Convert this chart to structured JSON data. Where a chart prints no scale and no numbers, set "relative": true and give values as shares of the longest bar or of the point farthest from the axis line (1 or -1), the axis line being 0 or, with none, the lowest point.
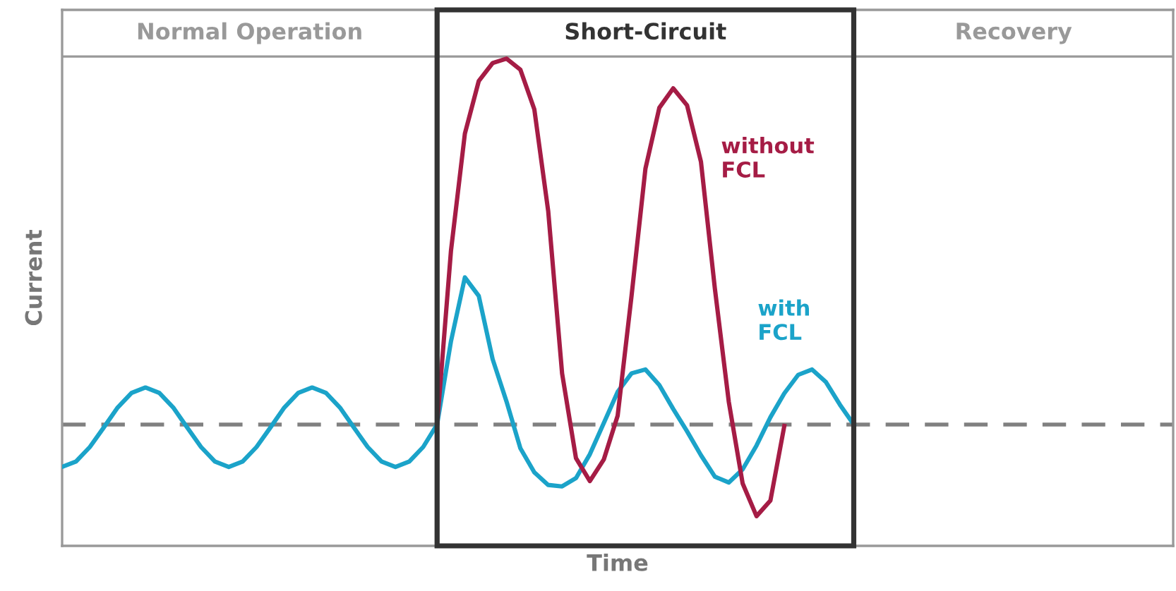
{
  "chart_data": {
    "type": "line",
    "relative": true,
    "xlabel": "Time",
    "ylabel": "Current",
    "categories": [
      null,
      null,
      null,
      null,
      null,
      null,
      null,
      null,
      null,
      null,
      null,
      null,
      null,
      null,
      null,
      null,
      null,
      null,
      null,
      null,
      null,
      null,
      null,
      null,
      null,
      null,
      null,
      null,
      null,
      null,
      null,
      null,
      null,
      null,
      null,
      null,
      null,
      null,
      null,
      null,
      null,
      null,
      null,
      null,
      null,
      null,
      null,
      null,
      null,
      null,
      null,
      null,
      null,
      null,
      null,
      null,
      null,
      null,
      null,
      null,
      null,
      null,
      null,
      null,
      null,
      null,
      null,
      null,
      null,
      null,
      null,
      null,
      null,
      null,
      null,
      null,
      null,
      null,
      null,
      null,
      null
    ],
    "series": [
      {
        "name": "with FCL",
        "color": "#1ba3c9",
        "values": [
          0.162,
          0.173,
          0.203,
          0.243,
          0.284,
          0.314,
          0.325,
          0.314,
          0.284,
          0.243,
          0.203,
          0.173,
          0.162,
          0.173,
          0.203,
          0.243,
          0.284,
          0.314,
          0.325,
          0.314,
          0.284,
          0.243,
          0.203,
          0.173,
          0.162,
          0.173,
          0.203,
          0.249,
          0.42,
          0.551,
          0.513,
          0.383,
          0.296,
          0.2,
          0.151,
          0.125,
          0.122,
          0.139,
          0.188,
          0.252,
          0.316,
          0.354,
          0.362,
          0.33,
          0.281,
          0.235,
          0.186,
          0.142,
          0.13,
          0.157,
          0.206,
          0.264,
          0.313,
          0.351,
          0.362,
          0.336,
          0.29,
          0.249,
          null,
          null,
          null,
          null,
          null,
          null,
          null,
          null,
          null,
          null,
          null,
          null,
          null,
          null,
          null,
          null,
          null,
          null,
          null,
          null,
          null,
          null,
          null
        ]
      },
      {
        "name": "without FCL",
        "color": "#a51c45",
        "values": [
          null,
          null,
          null,
          null,
          null,
          null,
          null,
          null,
          null,
          null,
          null,
          null,
          null,
          null,
          null,
          null,
          null,
          null,
          null,
          null,
          null,
          null,
          null,
          null,
          null,
          null,
          null,
          0.249,
          0.606,
          0.846,
          0.954,
          0.991,
          1,
          0.977,
          0.896,
          0.687,
          0.354,
          0.18,
          0.133,
          0.177,
          0.267,
          0.513,
          0.774,
          0.899,
          0.939,
          0.904,
          0.788,
          0.528,
          0.296,
          0.128,
          0.061,
          0.093,
          0.246,
          null,
          null,
          null,
          null,
          null,
          null,
          null,
          null,
          null,
          null,
          null,
          null,
          null,
          null,
          null,
          null,
          null,
          null,
          null,
          null,
          null,
          null,
          null,
          null,
          null,
          null,
          null,
          null
        ]
      }
    ],
    "ref_lines": [
      {
        "axis": "y",
        "value": 0.249,
        "color": "#808080",
        "line_style": "dashed"
      }
    ],
    "annotations": [
      "Normal Operation",
      "Short-Circuit",
      "Recovery"
    ]
  }
}
